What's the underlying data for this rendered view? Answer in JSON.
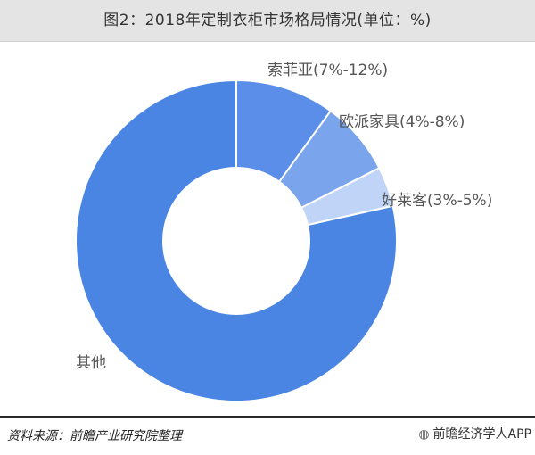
{
  "chart_data": {
    "type": "pie",
    "title": "图2：2018年定制衣柜市场格局情况(单位：%)",
    "donut": true,
    "slices": [
      {
        "label": "索菲亚(7%-12%)",
        "value": 10,
        "color": "#5b8ee8"
      },
      {
        "label": "欧派家具(4%-8%)",
        "value": 7.5,
        "color": "#7aa4ec"
      },
      {
        "label": "好莱客(3%-5%)",
        "value": 4,
        "color": "#bfd4f6"
      },
      {
        "label": "其他",
        "value": 78.5,
        "color": "#4a85e4"
      }
    ]
  },
  "footer": {
    "source": "资料来源：前瞻产业研究院整理",
    "watermark": "前瞻经济学人APP"
  }
}
